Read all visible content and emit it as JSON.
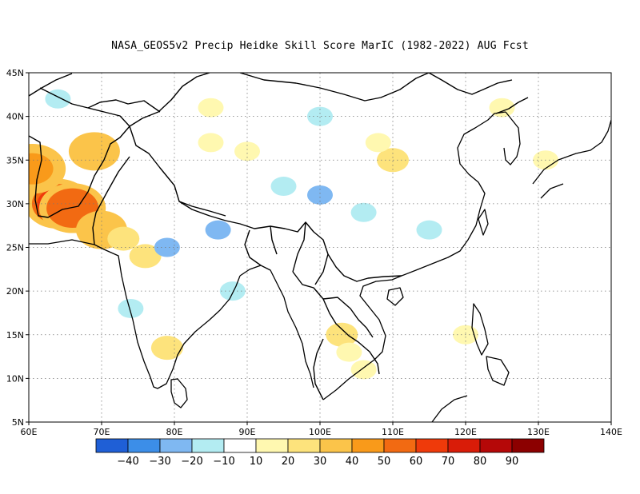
{
  "title": "NASA_GEOS5v2 Precip Heidke Skill Score MarIC (1982-2022) AUG Fcst",
  "map": {
    "lon_range": [
      60,
      140
    ],
    "lat_range": [
      5,
      45
    ],
    "lon_ticks": [
      "60E",
      "70E",
      "80E",
      "90E",
      "100E",
      "110E",
      "120E",
      "130E",
      "140E"
    ],
    "lat_ticks": [
      "5N",
      "10N",
      "15N",
      "20N",
      "25N",
      "30N",
      "35N",
      "40N",
      "45N"
    ],
    "gridlines": "dotted",
    "coastlines": true
  },
  "colorbar": {
    "colors": [
      "#1f5fd6",
      "#3c8ee8",
      "#7fb8f2",
      "#b3ecf2",
      "#ffffff",
      "#fff8b0",
      "#fde37c",
      "#fbc44a",
      "#f99a1a",
      "#f26a12",
      "#ef3a0a",
      "#d91c08",
      "#b50808",
      "#8c0000"
    ],
    "labels": [
      "-40",
      "-30",
      "-20",
      "-10",
      "10",
      "20",
      "30",
      "40",
      "50",
      "60",
      "70",
      "80",
      "90"
    ]
  },
  "features": [
    {
      "name": "pakistan-max",
      "lon": 64,
      "lat": 30,
      "level": 70
    },
    {
      "name": "pakistan-high",
      "lon": 66,
      "lat": 29.5,
      "level": 60
    },
    {
      "name": "iran-east",
      "lon": 60.5,
      "lat": 34,
      "level": 50
    },
    {
      "name": "afghanistan",
      "lon": 69,
      "lat": 36,
      "level": 40
    },
    {
      "name": "pakistan-south",
      "lon": 70,
      "lat": 27,
      "level": 40
    },
    {
      "name": "india-west",
      "lon": 73,
      "lat": 26,
      "level": 30
    },
    {
      "name": "india-central",
      "lon": 76,
      "lat": 24,
      "level": 30
    },
    {
      "name": "india-south",
      "lon": 79,
      "lat": 13.5,
      "level": 30
    },
    {
      "name": "tibet-west",
      "lon": 85,
      "lat": 37,
      "level": 20
    },
    {
      "name": "tibet-central",
      "lon": 90,
      "lat": 36,
      "level": 20
    },
    {
      "name": "mongolia",
      "lon": 85,
      "lat": 41,
      "level": 20
    },
    {
      "name": "china-central",
      "lon": 110,
      "lat": 35,
      "level": 30
    },
    {
      "name": "china-north",
      "lon": 108,
      "lat": 37,
      "level": 20
    },
    {
      "name": "manchuria",
      "lon": 125,
      "lat": 41,
      "level": 20
    },
    {
      "name": "thailand",
      "lon": 103,
      "lat": 15,
      "level": 30
    },
    {
      "name": "cambodia",
      "lon": 104,
      "lat": 13,
      "level": 20
    },
    {
      "name": "vietnam-south",
      "lon": 106,
      "lat": 11,
      "level": 20
    },
    {
      "name": "japan",
      "lon": 131,
      "lat": 35,
      "level": 20
    },
    {
      "name": "philippines",
      "lon": 120,
      "lat": 15,
      "level": 20
    },
    {
      "name": "sichuan",
      "lon": 100,
      "lat": 31,
      "level": -20
    },
    {
      "name": "nepal",
      "lon": 86,
      "lat": 27,
      "level": -20
    },
    {
      "name": "india-east",
      "lon": 79,
      "lat": 25,
      "level": -20
    },
    {
      "name": "south-china",
      "lon": 115,
      "lat": 27,
      "level": -10
    },
    {
      "name": "south-china-2",
      "lon": 106,
      "lat": 29,
      "level": -10
    },
    {
      "name": "bay-bengal",
      "lon": 88,
      "lat": 20,
      "level": -10
    },
    {
      "name": "tibet-south",
      "lon": 95,
      "lat": 32,
      "level": -10
    },
    {
      "name": "india-sw",
      "lon": 74,
      "lat": 18,
      "level": -10
    },
    {
      "name": "kazakh",
      "lon": 64,
      "lat": 42,
      "level": -10
    },
    {
      "name": "gansu",
      "lon": 100,
      "lat": 40,
      "level": -10
    }
  ]
}
